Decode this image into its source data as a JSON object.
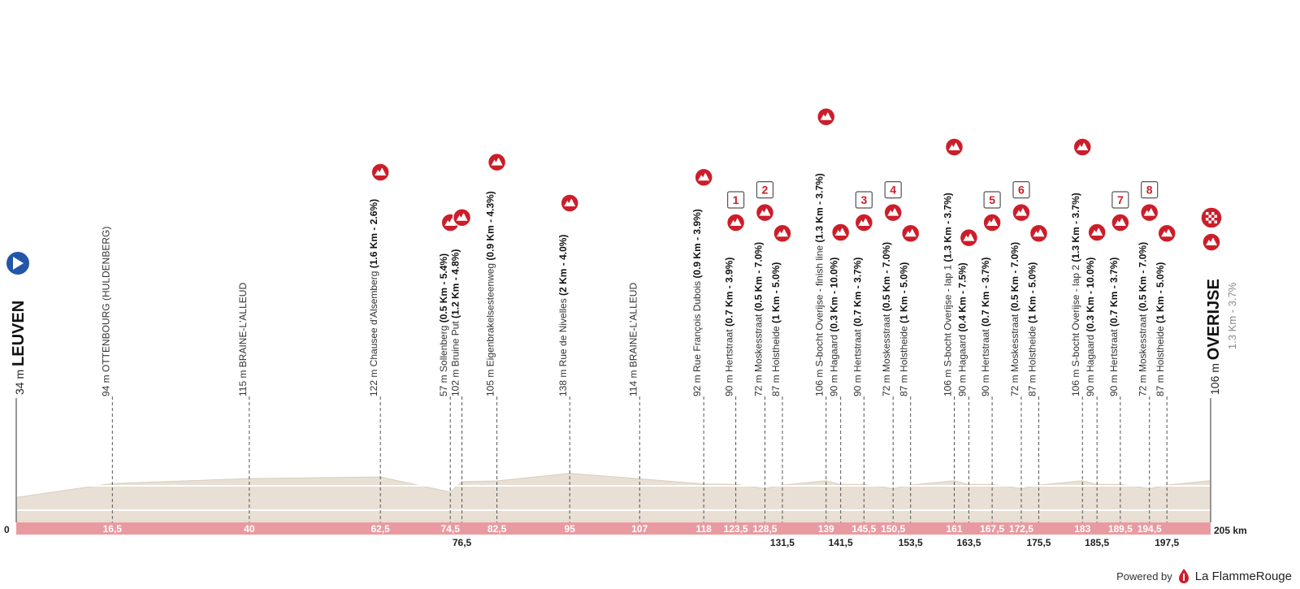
{
  "start": {
    "alt": "34 m",
    "name": "LEUVEN",
    "km": "0"
  },
  "finish": {
    "alt": "106 m",
    "name": "OVERIJSE",
    "climb": "1.3 Km - 3.7%",
    "km": "205 km"
  },
  "colors": {
    "ground": "#e8e0d4",
    "band": "#e99aa1",
    "climb": "#cc1e2a",
    "start_icon": "#2356a8"
  },
  "waypoints": [
    {
      "km": 16.5,
      "label": "16,5",
      "alt": 94,
      "text": "94 m OTTENBOURG (HULDENBERG)",
      "icon": "none"
    },
    {
      "km": 40,
      "label": "40",
      "alt": 115,
      "text": "115 m BRAINE-L'ALLEUD",
      "icon": "none"
    },
    {
      "km": 62.5,
      "label": "62,5",
      "alt": 122,
      "text": "122 m Chausee d'Alsemberg",
      "bold": "(1.6 Km - 2.6%)",
      "icon": "climb"
    },
    {
      "km": 74.5,
      "label": "74,5",
      "alt": 57,
      "text": "57 m Sollenberg",
      "bold": "(0.5 Km - 5.4%)",
      "icon": "climb"
    },
    {
      "km": 76.5,
      "label": "76,5",
      "alt": 102,
      "text": "102 m Bruine Put",
      "bold": "(1.2 Km - 4.8%)",
      "icon": "climb"
    },
    {
      "km": 82.5,
      "label": "82,5",
      "alt": 105,
      "text": "105 m Eigenbrakelsesteenweg",
      "bold": "(0.9 Km - 4.3%)",
      "icon": "climb"
    },
    {
      "km": 95,
      "label": "95",
      "alt": 138,
      "text": "138 m Rue de Nivelles",
      "bold": "(2 Km - 4.0%)",
      "icon": "climb"
    },
    {
      "km": 107,
      "label": "107",
      "alt": 114,
      "text": "114 m BRAINE-L'ALLEUD",
      "icon": "none"
    },
    {
      "km": 118,
      "label": "118",
      "alt": 92,
      "text": "92 m Rue François Dubois",
      "bold": "(0.9 Km - 3.9%)",
      "icon": "climb"
    },
    {
      "km": 123.5,
      "label": "123,5",
      "alt": 90,
      "text": "90 m Hertstraat",
      "bold": "(0.7 Km - 3.9%)",
      "icon": "climb",
      "lap": "1"
    },
    {
      "km": 128.5,
      "label": "128,5",
      "alt": 72,
      "text": "72 m Moskesstraat",
      "bold": "(0.5 Km - 7.0%)",
      "icon": "climb",
      "lap": "2"
    },
    {
      "km": 131.5,
      "label": "131,5",
      "alt": 87,
      "text": "87 m Holstheide",
      "bold": "(1 Km - 5.0%)",
      "icon": "climb"
    },
    {
      "km": 139,
      "label": "139",
      "alt": 106,
      "text": "106 m S-bocht Overijse - finish line",
      "bold": "(1.3 Km - 3.7%)",
      "icon": "climb"
    },
    {
      "km": 141.5,
      "label": "141,5",
      "alt": 90,
      "text": "90 m Hagaard",
      "bold": "(0.3 Km - 10.0%)",
      "icon": "climb"
    },
    {
      "km": 145.5,
      "label": "145,5",
      "alt": 90,
      "text": "90 m Hertstraat",
      "bold": "(0.7 Km - 3.7%)",
      "icon": "climb",
      "lap": "3"
    },
    {
      "km": 150.5,
      "label": "150,5",
      "alt": 72,
      "text": "72 m Moskesstraat",
      "bold": "(0.5 Km - 7.0%)",
      "icon": "climb",
      "lap": "4"
    },
    {
      "km": 153.5,
      "label": "153,5",
      "alt": 87,
      "text": "87 m Holstheide",
      "bold": "(1 Km - 5.0%)",
      "icon": "climb"
    },
    {
      "km": 161,
      "label": "161",
      "alt": 106,
      "text": "106 m S-bocht Overijse - lap 1",
      "bold": "(1.3 Km - 3.7%)",
      "icon": "climb"
    },
    {
      "km": 163.5,
      "label": "163,5",
      "alt": 90,
      "text": "90 m Hagaard",
      "bold": "(0.4 Km - 7.5%)",
      "icon": "climb"
    },
    {
      "km": 167.5,
      "label": "167,5",
      "alt": 90,
      "text": "90 m Hertstraat",
      "bold": "(0.7 Km - 3.7%)",
      "icon": "climb",
      "lap": "5"
    },
    {
      "km": 172.5,
      "label": "172,5",
      "alt": 72,
      "text": "72 m Moskesstraat",
      "bold": "(0.5 Km - 7.0%)",
      "icon": "climb",
      "lap": "6"
    },
    {
      "km": 175.5,
      "label": "175,5",
      "alt": 87,
      "text": "87 m Holstheide",
      "bold": "(1 Km - 5.0%)",
      "icon": "climb"
    },
    {
      "km": 183,
      "label": "183",
      "alt": 106,
      "text": "106 m S-bocht Overijse - lap 2",
      "bold": "(1.3 Km - 3.7%)",
      "icon": "climb"
    },
    {
      "km": 185.5,
      "label": "185,5",
      "alt": 90,
      "text": "90 m Hagaard",
      "bold": "(0.3 Km - 10.0%)",
      "icon": "climb"
    },
    {
      "km": 189.5,
      "label": "189,5",
      "alt": 90,
      "text": "90 m Hertstraat",
      "bold": "(0.7 Km - 3.7%)",
      "icon": "climb",
      "lap": "7"
    },
    {
      "km": 194.5,
      "label": "194,5",
      "alt": 72,
      "text": "72 m Moskesstraat",
      "bold": "(0.5 Km - 7.0%)",
      "icon": "climb",
      "lap": "8"
    },
    {
      "km": 197.5,
      "label": "197,5",
      "alt": 87,
      "text": "87 m Holstheide",
      "bold": "(1 Km - 5.0%)",
      "icon": "climb"
    }
  ],
  "brand": {
    "powered": "Powered by",
    "name": "La FlammeRouge"
  }
}
